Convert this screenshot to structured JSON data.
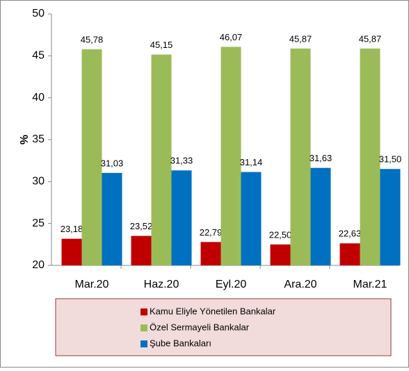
{
  "chart_data": {
    "type": "bar",
    "y_label": "%",
    "categories": [
      "Mar.20",
      "Haz.20",
      "Eyl.20",
      "Ara.20",
      "Mar.21"
    ],
    "series": [
      {
        "name": "Kamu Eliyle Yönetilen Bankalar",
        "color": "#c00000",
        "values": [
          23.18,
          23.52,
          22.79,
          22.5,
          22.63
        ],
        "value_labels": [
          "23,18",
          "23,52",
          "22,79",
          "22,50",
          "22,63"
        ]
      },
      {
        "name": "Özel Sermayeli Bankalar",
        "color": "#9bbb59",
        "values": [
          45.78,
          45.15,
          46.07,
          45.87,
          45.87
        ],
        "value_labels": [
          "45,78",
          "45,15",
          "46,07",
          "45,87",
          "45,87"
        ]
      },
      {
        "name": "Şube Bankaları",
        "color": "#0070c0",
        "values": [
          31.03,
          31.33,
          31.14,
          31.63,
          31.5
        ],
        "value_labels": [
          "31,03",
          "31,33",
          "31,14",
          "31,63",
          "31,50"
        ]
      }
    ],
    "ylim": [
      20,
      50
    ],
    "yticks": [
      20,
      25,
      30,
      35,
      40,
      45,
      50
    ],
    "grid": false
  }
}
